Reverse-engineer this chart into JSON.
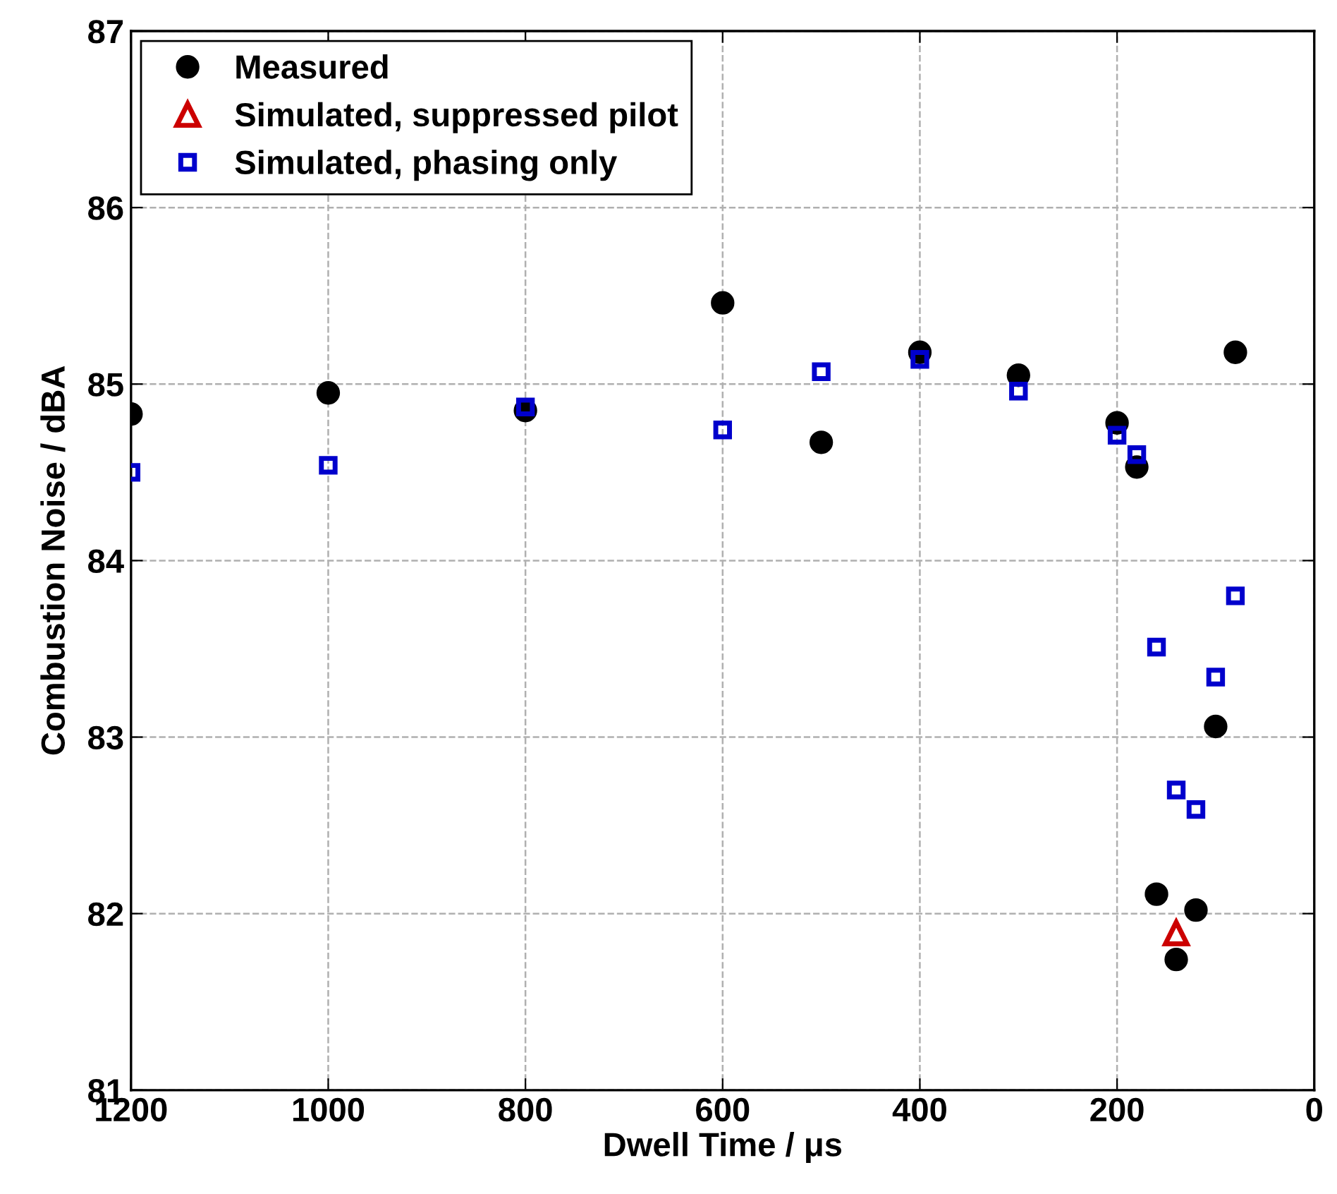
{
  "chart_data": {
    "type": "scatter",
    "xlabel": "Dwell Time / μs",
    "ylabel": "Combustion Noise / dBA",
    "xlim": [
      1200,
      0
    ],
    "ylim": [
      81,
      87
    ],
    "xticks": [
      1200,
      1000,
      800,
      600,
      400,
      200,
      0
    ],
    "yticks": [
      81,
      82,
      83,
      84,
      85,
      86,
      87
    ],
    "grid": true,
    "legend": "top left",
    "series": [
      {
        "name": "Measured",
        "color": "#000000",
        "marker": "circle",
        "x": [
          1200,
          1000,
          800,
          600,
          500,
          400,
          300,
          200,
          180,
          160,
          140,
          120,
          100,
          80
        ],
        "values": [
          84.83,
          84.95,
          84.85,
          85.46,
          84.67,
          85.18,
          85.05,
          84.78,
          84.53,
          82.11,
          81.74,
          82.02,
          83.06,
          85.18
        ]
      },
      {
        "name": "Simulated, suppressed pilot",
        "color": "#cc0000",
        "marker": "triangle",
        "x": [
          140
        ],
        "values": [
          81.89
        ]
      },
      {
        "name": "Simulated, phasing only",
        "color": "#0000cc",
        "marker": "square",
        "x": [
          1200,
          1000,
          800,
          600,
          500,
          400,
          300,
          200,
          180,
          160,
          140,
          120,
          100,
          80
        ],
        "values": [
          84.5,
          84.54,
          84.87,
          84.74,
          85.07,
          85.14,
          84.96,
          84.71,
          84.6,
          83.51,
          82.7,
          82.59,
          83.34,
          83.8
        ]
      }
    ]
  }
}
